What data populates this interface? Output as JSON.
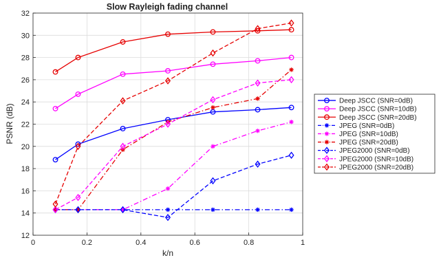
{
  "chart_data": {
    "type": "line",
    "title": "Slow Rayleigh fading channel",
    "xlabel": "k/n",
    "ylabel": "PSNR (dB)",
    "xlim": [
      0,
      1
    ],
    "ylim": [
      12,
      32
    ],
    "xticks": [
      0,
      0.2,
      0.4,
      0.6,
      0.8,
      1
    ],
    "yticks": [
      12,
      14,
      16,
      18,
      20,
      22,
      24,
      26,
      28,
      30,
      32
    ],
    "grid": true,
    "legend_position": "outside-right",
    "x": [
      0.083,
      0.167,
      0.333,
      0.5,
      0.667,
      0.833,
      0.958
    ],
    "series": [
      {
        "name": "Deep JSCC (SNR=0dB)",
        "color": "#0000ff",
        "line": "solid",
        "marker": "circle",
        "values": [
          18.8,
          20.2,
          21.6,
          22.4,
          23.1,
          23.3,
          23.5
        ]
      },
      {
        "name": "Deep JSCC (SNR=10dB)",
        "color": "#ff00ff",
        "line": "solid",
        "marker": "circle",
        "values": [
          23.4,
          24.7,
          26.5,
          26.8,
          27.4,
          27.7,
          28.0
        ]
      },
      {
        "name": "Deep JSCC (SNR=20dB)",
        "color": "#e60000",
        "line": "solid",
        "marker": "circle",
        "values": [
          26.7,
          28.0,
          29.4,
          30.1,
          30.3,
          30.4,
          30.5
        ]
      },
      {
        "name": "JPEG (SNR=0dB)",
        "color": "#0000ff",
        "line": "dashdot",
        "marker": "star",
        "values": [
          14.3,
          14.3,
          14.3,
          14.3,
          14.3,
          14.3,
          14.3
        ]
      },
      {
        "name": "JPEG (SNR=10dB)",
        "color": "#ff00ff",
        "line": "dashdot",
        "marker": "star",
        "values": [
          14.3,
          14.3,
          14.3,
          16.2,
          20.0,
          21.4,
          22.2
        ]
      },
      {
        "name": "JPEG (SNR=20dB)",
        "color": "#e60000",
        "line": "dashdot",
        "marker": "star",
        "values": [
          14.3,
          14.3,
          19.7,
          22.2,
          23.5,
          24.3,
          26.9
        ]
      },
      {
        "name": "JPEG2000 (SNR=0dB)",
        "color": "#0000ff",
        "line": "dashed",
        "marker": "diamond",
        "values": [
          14.3,
          14.3,
          14.3,
          13.6,
          16.9,
          18.4,
          19.2
        ]
      },
      {
        "name": "JPEG2000 (SNR=10dB)",
        "color": "#ff00ff",
        "line": "dashed",
        "marker": "diamond",
        "values": [
          14.3,
          15.4,
          20.0,
          22.0,
          24.2,
          25.7,
          26.0
        ]
      },
      {
        "name": "JPEG2000 (SNR=20dB)",
        "color": "#e60000",
        "line": "dashed",
        "marker": "diamond",
        "values": [
          14.8,
          20.0,
          24.1,
          25.9,
          28.4,
          30.6,
          31.1
        ]
      }
    ]
  }
}
